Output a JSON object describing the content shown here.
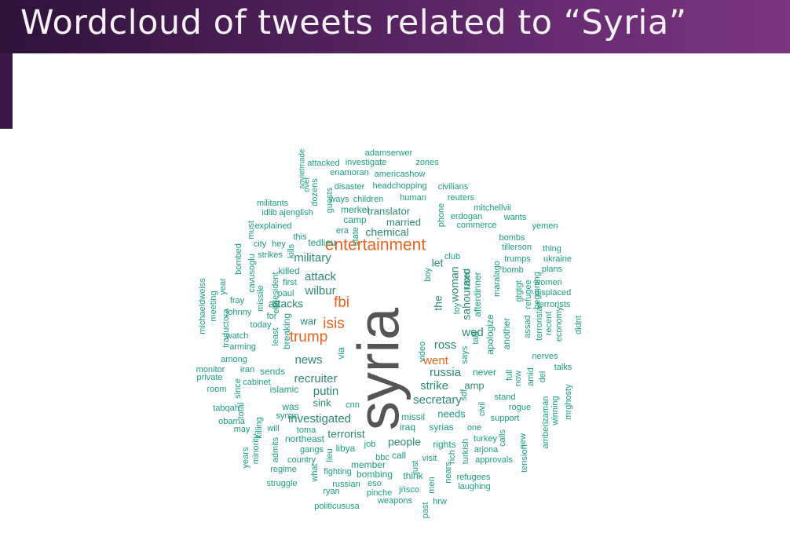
{
  "slide": {
    "title": "Wordcloud of tweets related to “Syria”"
  },
  "colors": {
    "title_bar": "#4b1f56",
    "title_text": "#f4f0f6",
    "word_small": "#1a9e80",
    "word_medium": "#2c8a6e",
    "word_orange": "#e8641d",
    "word_dominant": "#555555"
  },
  "wordcloud": {
    "words": [
      {
        "text": "syria",
        "group": "dominant"
      },
      {
        "text": "entertainment",
        "group": "orange"
      },
      {
        "text": "fbi",
        "group": "orange"
      },
      {
        "text": "isis",
        "group": "orange"
      },
      {
        "text": "trump",
        "group": "orange"
      },
      {
        "text": "went",
        "group": "orange"
      },
      {
        "text": "military",
        "group": "medium"
      },
      {
        "text": "attack",
        "group": "medium"
      },
      {
        "text": "wilbur",
        "group": "medium"
      },
      {
        "text": "news",
        "group": "medium"
      },
      {
        "text": "recruiter",
        "group": "medium"
      },
      {
        "text": "putin",
        "group": "medium"
      },
      {
        "text": "investigated",
        "group": "medium"
      },
      {
        "text": "ross",
        "group": "medium"
      },
      {
        "text": "russia",
        "group": "medium"
      },
      {
        "text": "strike",
        "group": "medium"
      },
      {
        "text": "secretary",
        "group": "medium"
      },
      {
        "text": "wed",
        "group": "medium"
      },
      {
        "text": "sahouraxo",
        "group": "medium"
      },
      {
        "text": "woman",
        "group": "medium"
      },
      {
        "text": "terrorist",
        "group": "medium"
      },
      {
        "text": "people",
        "group": "medium"
      },
      {
        "text": "chemical",
        "group": "medium"
      },
      {
        "text": "married",
        "group": "medium"
      },
      {
        "text": "translator",
        "group": "medium"
      },
      {
        "text": "attacks",
        "group": "medium"
      },
      {
        "text": "the",
        "group": "medium"
      },
      {
        "text": "let",
        "group": "medium"
      },
      {
        "text": "amp",
        "group": "medium"
      },
      {
        "text": "war",
        "group": "medium"
      },
      {
        "text": "sink",
        "group": "medium"
      },
      {
        "text": "adamserwer",
        "group": "small"
      },
      {
        "text": "attacked",
        "group": "small"
      },
      {
        "text": "investigate",
        "group": "small"
      },
      {
        "text": "zones",
        "group": "small"
      },
      {
        "text": "enamoran",
        "group": "small"
      },
      {
        "text": "americashow",
        "group": "small"
      },
      {
        "text": "sovietmade",
        "group": "small"
      },
      {
        "text": "dozens",
        "group": "small"
      },
      {
        "text": "over",
        "group": "small"
      },
      {
        "text": "disaster",
        "group": "small"
      },
      {
        "text": "headchopping",
        "group": "small"
      },
      {
        "text": "civilians",
        "group": "small"
      },
      {
        "text": "guests",
        "group": "small"
      },
      {
        "text": "ways",
        "group": "small"
      },
      {
        "text": "children",
        "group": "small"
      },
      {
        "text": "human",
        "group": "small"
      },
      {
        "text": "reuters",
        "group": "small"
      },
      {
        "text": "militants",
        "group": "small"
      },
      {
        "text": "idlib",
        "group": "small"
      },
      {
        "text": "ajenglish",
        "group": "small"
      },
      {
        "text": "merkel",
        "group": "small"
      },
      {
        "text": "camp",
        "group": "small"
      },
      {
        "text": "mitchellvii",
        "group": "small"
      },
      {
        "text": "erdogan",
        "group": "small"
      },
      {
        "text": "wants",
        "group": "small"
      },
      {
        "text": "phone",
        "group": "small"
      },
      {
        "text": "explained",
        "group": "small"
      },
      {
        "text": "era",
        "group": "small"
      },
      {
        "text": "commerce",
        "group": "small"
      },
      {
        "text": "yemen",
        "group": "small"
      },
      {
        "text": "must",
        "group": "small"
      },
      {
        "text": "bombs",
        "group": "small"
      },
      {
        "text": "this",
        "group": "small"
      },
      {
        "text": "tedlieu",
        "group": "small"
      },
      {
        "text": "state",
        "group": "small"
      },
      {
        "text": "tillerson",
        "group": "small"
      },
      {
        "text": "thing",
        "group": "small"
      },
      {
        "text": "city",
        "group": "small"
      },
      {
        "text": "hey",
        "group": "small"
      },
      {
        "text": "kills",
        "group": "small"
      },
      {
        "text": "club",
        "group": "small"
      },
      {
        "text": "trumps",
        "group": "small"
      },
      {
        "text": "ukraine",
        "group": "small"
      },
      {
        "text": "strikes",
        "group": "small"
      },
      {
        "text": "bomb",
        "group": "small"
      },
      {
        "text": "plans",
        "group": "small"
      },
      {
        "text": "bombed",
        "group": "small"
      },
      {
        "text": "killed",
        "group": "small"
      },
      {
        "text": "boy",
        "group": "small"
      },
      {
        "text": "maralago",
        "group": "small"
      },
      {
        "text": "cavusoglu",
        "group": "small"
      },
      {
        "text": "president",
        "group": "small"
      },
      {
        "text": "first",
        "group": "small"
      },
      {
        "text": "used",
        "group": "small"
      },
      {
        "text": "refugee",
        "group": "small"
      },
      {
        "text": "women",
        "group": "small"
      },
      {
        "text": "year",
        "group": "small"
      },
      {
        "text": "missile",
        "group": "small"
      },
      {
        "text": "paul",
        "group": "small"
      },
      {
        "text": "afterdinner",
        "group": "small"
      },
      {
        "text": "gtgtgt",
        "group": "small"
      },
      {
        "text": "beginning",
        "group": "small"
      },
      {
        "text": "displaced",
        "group": "small"
      },
      {
        "text": "michaeldweiss",
        "group": "small"
      },
      {
        "text": "meeting",
        "group": "small"
      },
      {
        "text": "ella",
        "group": "small"
      },
      {
        "text": "toy",
        "group": "small"
      },
      {
        "text": "fray",
        "group": "small"
      },
      {
        "text": "terrorists",
        "group": "small"
      },
      {
        "text": "johnny",
        "group": "small"
      },
      {
        "text": "for",
        "group": "small"
      },
      {
        "text": "traductora",
        "group": "small"
      },
      {
        "text": "today",
        "group": "small"
      },
      {
        "text": "talk",
        "group": "small"
      },
      {
        "text": "apologize",
        "group": "small"
      },
      {
        "text": "another",
        "group": "small"
      },
      {
        "text": "assad",
        "group": "small"
      },
      {
        "text": "terrorista",
        "group": "small"
      },
      {
        "text": "recent",
        "group": "small"
      },
      {
        "text": "economy",
        "group": "small"
      },
      {
        "text": "didnt",
        "group": "small"
      },
      {
        "text": "watch",
        "group": "small"
      },
      {
        "text": "least",
        "group": "small"
      },
      {
        "text": "breaking",
        "group": "small"
      },
      {
        "text": "arming",
        "group": "small"
      },
      {
        "text": "video",
        "group": "small"
      },
      {
        "text": "says",
        "group": "small"
      },
      {
        "text": "via",
        "group": "small"
      },
      {
        "text": "among",
        "group": "small"
      },
      {
        "text": "nerves",
        "group": "small"
      },
      {
        "text": "monitor",
        "group": "small"
      },
      {
        "text": "private",
        "group": "small"
      },
      {
        "text": "iran",
        "group": "small"
      },
      {
        "text": "sends",
        "group": "small"
      },
      {
        "text": "never",
        "group": "small"
      },
      {
        "text": "talks",
        "group": "small"
      },
      {
        "text": "cabinet",
        "group": "small"
      },
      {
        "text": "full",
        "group": "small"
      },
      {
        "text": "now",
        "group": "small"
      },
      {
        "text": "amid",
        "group": "small"
      },
      {
        "text": "del",
        "group": "small"
      },
      {
        "text": "room",
        "group": "small"
      },
      {
        "text": "since",
        "group": "small"
      },
      {
        "text": "islamic",
        "group": "small"
      },
      {
        "text": "sdf",
        "group": "small"
      },
      {
        "text": "stand",
        "group": "small"
      },
      {
        "text": "mrghosty",
        "group": "small"
      },
      {
        "text": "tabqah",
        "group": "small"
      },
      {
        "text": "total",
        "group": "small"
      },
      {
        "text": "was",
        "group": "small"
      },
      {
        "text": "cnn",
        "group": "small"
      },
      {
        "text": "rogue",
        "group": "small"
      },
      {
        "text": "winning",
        "group": "small"
      },
      {
        "text": "obama",
        "group": "small"
      },
      {
        "text": "synan",
        "group": "small"
      },
      {
        "text": "missil",
        "group": "small"
      },
      {
        "text": "needs",
        "group": "small"
      },
      {
        "text": "civil",
        "group": "small"
      },
      {
        "text": "support",
        "group": "small"
      },
      {
        "text": "amberizaman",
        "group": "small"
      },
      {
        "text": "may",
        "group": "small"
      },
      {
        "text": "killing",
        "group": "small"
      },
      {
        "text": "will",
        "group": "small"
      },
      {
        "text": "toma",
        "group": "small"
      },
      {
        "text": "iraq",
        "group": "small"
      },
      {
        "text": "syrias",
        "group": "small"
      },
      {
        "text": "one",
        "group": "small"
      },
      {
        "text": "calls",
        "group": "small"
      },
      {
        "text": "minority",
        "group": "small"
      },
      {
        "text": "northeast",
        "group": "small"
      },
      {
        "text": "turkey",
        "group": "small"
      },
      {
        "text": "new",
        "group": "small"
      },
      {
        "text": "admits",
        "group": "small"
      },
      {
        "text": "gangs",
        "group": "small"
      },
      {
        "text": "libya",
        "group": "small"
      },
      {
        "text": "job",
        "group": "small"
      },
      {
        "text": "rights",
        "group": "small"
      },
      {
        "text": "turkish",
        "group": "small"
      },
      {
        "text": "arjona",
        "group": "small"
      },
      {
        "text": "years",
        "group": "small"
      },
      {
        "text": "country",
        "group": "small"
      },
      {
        "text": "lieu",
        "group": "small"
      },
      {
        "text": "bbc",
        "group": "small"
      },
      {
        "text": "call",
        "group": "small"
      },
      {
        "text": "visit",
        "group": "small"
      },
      {
        "text": "rich",
        "group": "small"
      },
      {
        "text": "approvals",
        "group": "small"
      },
      {
        "text": "tension",
        "group": "small"
      },
      {
        "text": "regime",
        "group": "small"
      },
      {
        "text": "what",
        "group": "small"
      },
      {
        "text": "member",
        "group": "small"
      },
      {
        "text": "just",
        "group": "small"
      },
      {
        "text": "fighting",
        "group": "small"
      },
      {
        "text": "bombing",
        "group": "small"
      },
      {
        "text": "think",
        "group": "small"
      },
      {
        "text": "nears",
        "group": "small"
      },
      {
        "text": "refugees",
        "group": "small"
      },
      {
        "text": "struggle",
        "group": "small"
      },
      {
        "text": "russian",
        "group": "small"
      },
      {
        "text": "eso",
        "group": "small"
      },
      {
        "text": "men",
        "group": "small"
      },
      {
        "text": "laughing",
        "group": "small"
      },
      {
        "text": "ryan",
        "group": "small"
      },
      {
        "text": "pinche",
        "group": "small"
      },
      {
        "text": "jrisco",
        "group": "small"
      },
      {
        "text": "weapons",
        "group": "small"
      },
      {
        "text": "hrw",
        "group": "small"
      },
      {
        "text": "politicususa",
        "group": "small"
      },
      {
        "text": "past",
        "group": "small"
      }
    ]
  }
}
